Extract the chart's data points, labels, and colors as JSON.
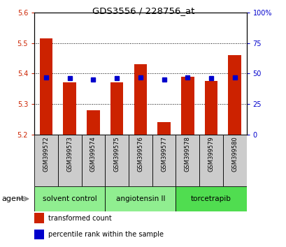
{
  "title": "GDS3556 / 228756_at",
  "samples": [
    "GSM399572",
    "GSM399573",
    "GSM399574",
    "GSM399575",
    "GSM399576",
    "GSM399577",
    "GSM399578",
    "GSM399579",
    "GSM399580"
  ],
  "transformed_counts": [
    5.515,
    5.37,
    5.28,
    5.37,
    5.43,
    5.24,
    5.39,
    5.375,
    5.46
  ],
  "percentile_ranks": [
    47,
    46,
    45,
    46,
    47,
    45,
    47,
    46,
    47
  ],
  "ylim_left": [
    5.2,
    5.6
  ],
  "ylim_right": [
    0,
    100
  ],
  "yticks_left": [
    5.2,
    5.3,
    5.4,
    5.5,
    5.6
  ],
  "yticks_right": [
    0,
    25,
    50,
    75,
    100
  ],
  "ytick_labels_right": [
    "0",
    "25",
    "50",
    "75",
    "100%"
  ],
  "groups": [
    {
      "label": "solvent control",
      "indices": [
        0,
        1,
        2
      ],
      "color": "#90EE90"
    },
    {
      "label": "angiotensin II",
      "indices": [
        3,
        4,
        5
      ],
      "color": "#90EE90"
    },
    {
      "label": "torcetrapib",
      "indices": [
        6,
        7,
        8
      ],
      "color": "#50DD50"
    }
  ],
  "bar_color": "#CC2200",
  "dot_color": "#0000CC",
  "bar_bottom": 5.2,
  "agent_label": "agent",
  "legend_items": [
    {
      "color": "#CC2200",
      "label": "transformed count"
    },
    {
      "color": "#0000CC",
      "label": "percentile rank within the sample"
    }
  ],
  "grid_color": "black",
  "background_color": "white",
  "tick_color_left": "#CC2200",
  "tick_color_right": "#0000CC",
  "gridline_yticks": [
    5.3,
    5.4,
    5.5
  ]
}
